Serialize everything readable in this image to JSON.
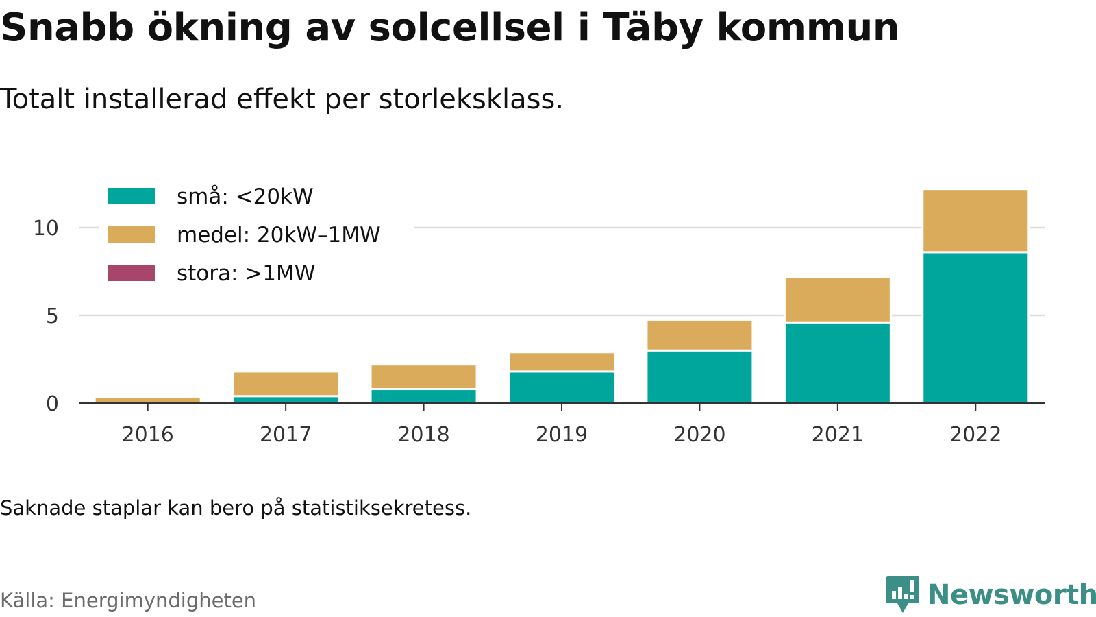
{
  "title": "Snabb ökning av solcellsel i Täby kommun",
  "subtitle": "Totalt installerad effekt per storleksklass.",
  "note": "Saknade staplar kan bero på statistiksekretess.",
  "source": "Källa: Energimyndigheten",
  "brand": {
    "name": "Newsworthy",
    "icon": "newsworthy-logo-icon",
    "color": "#3b8f86"
  },
  "chart_data": {
    "type": "bar",
    "stacked": true,
    "categories": [
      "2016",
      "2017",
      "2018",
      "2019",
      "2020",
      "2021",
      "2022"
    ],
    "series": [
      {
        "name": "små: <20kW",
        "color": "#00a59b",
        "values": [
          0,
          0.4,
          0.8,
          1.8,
          3.0,
          4.6,
          8.6
        ]
      },
      {
        "name": "medel: 20kW–1MW",
        "color": "#d9ab5b",
        "values": [
          0.35,
          1.4,
          1.4,
          1.1,
          1.75,
          2.6,
          3.6
        ]
      },
      {
        "name": "stora: >1MW",
        "color": "#a8456b",
        "values": [
          0,
          0,
          0,
          0,
          0,
          0,
          0
        ]
      }
    ],
    "yticks": [
      0,
      5,
      10
    ],
    "ytick_labels": [
      "0",
      "5",
      "10"
    ],
    "ylim": [
      0,
      12.5
    ],
    "grid": true,
    "legend_position": "top-left",
    "xlabel": "",
    "ylabel": ""
  }
}
